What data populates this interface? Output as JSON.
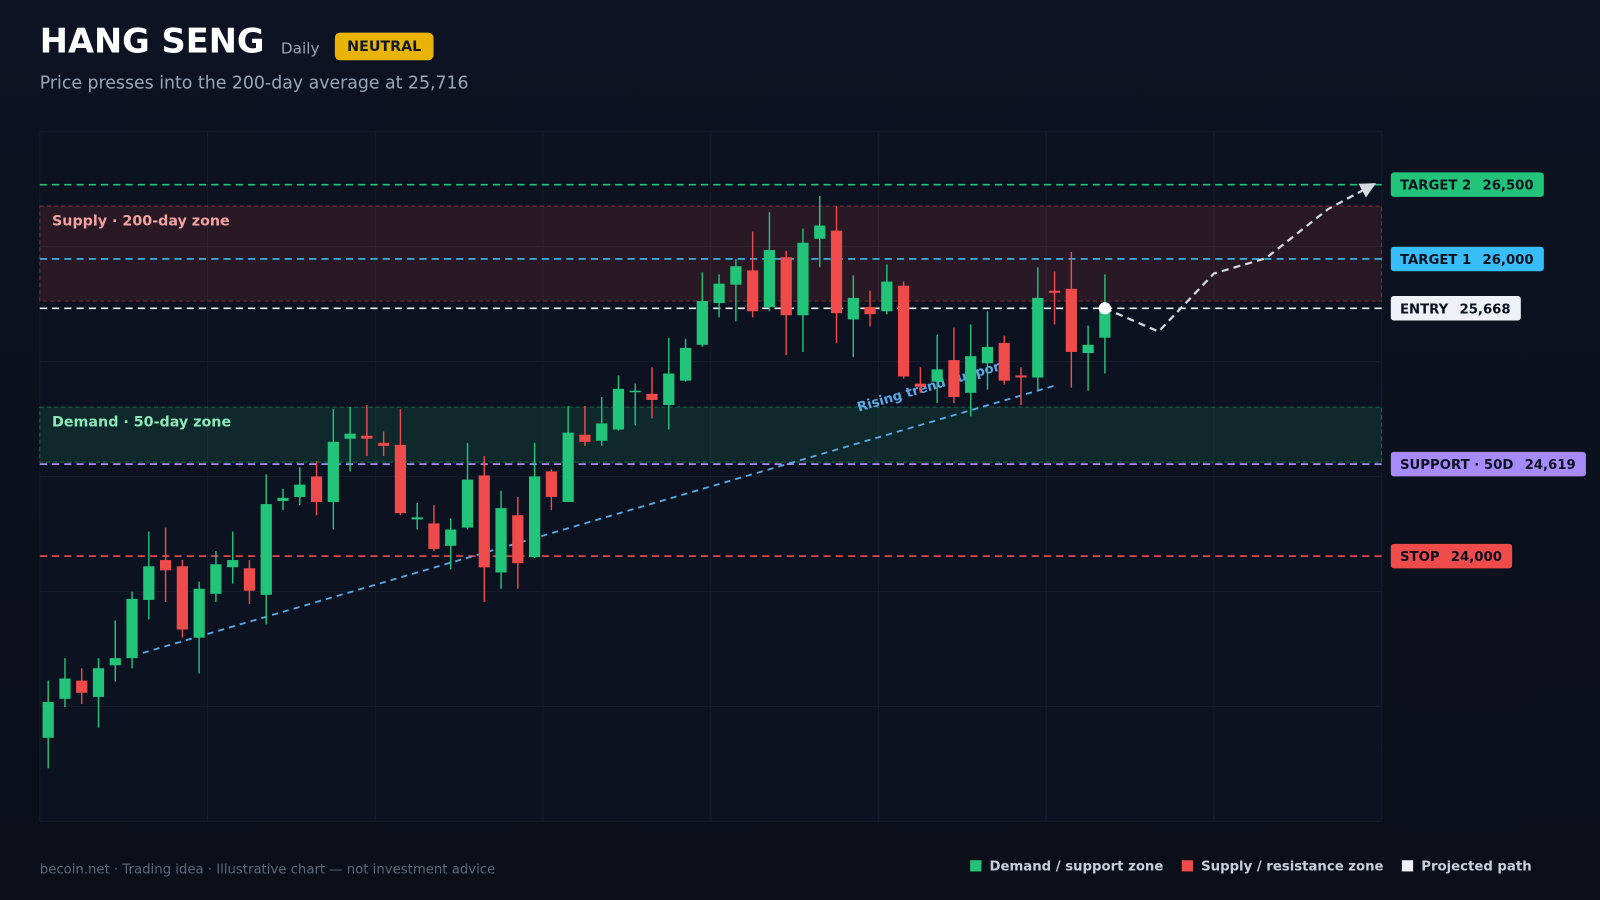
{
  "title": "HANG SENG",
  "timeframe": "Daily",
  "badge": "NEUTRAL",
  "subtitle": "Price presses into the 200-day average at 25,716",
  "footer": "becoin.net  ·  Trading idea  ·  Illustrative chart — not investment advice",
  "chart_data": {
    "type": "candlestick",
    "ylim": [
      22214,
      26857
    ],
    "up_color": "#22c47a",
    "down_color": "#ef4b4b",
    "open": [
      22777,
      23039,
      23162,
      23052,
      23265,
      23313,
      23705,
      23973,
      23931,
      23451,
      23746,
      23925,
      23918,
      23739,
      24371,
      24398,
      24536,
      24364,
      24790,
      24810,
      24762,
      24749,
      24247,
      24220,
      24069,
      24192,
      24543,
      23890,
      24275,
      23993,
      24570,
      24364,
      24817,
      24776,
      24852,
      25106,
      25092,
      25017,
      25181,
      25422,
      25703,
      25827,
      25923,
      25676,
      26012,
      25621,
      26136,
      26191,
      25593,
      25676,
      25648,
      25820,
      25161,
      25174,
      25319,
      25099,
      25298,
      25435,
      25216,
      25202,
      25786,
      25799,
      25367,
      25470
    ],
    "high": [
      23162,
      23313,
      23245,
      23313,
      23567,
      23760,
      24165,
      24192,
      23973,
      23828,
      24034,
      24165,
      23973,
      24550,
      24453,
      24598,
      24639,
      24989,
      25003,
      25017,
      24838,
      24989,
      24357,
      24343,
      24254,
      24762,
      24673,
      24440,
      24398,
      24762,
      24584,
      25010,
      25010,
      25071,
      25216,
      25161,
      25271,
      25470,
      25463,
      25909,
      25896,
      25999,
      26184,
      26315,
      26054,
      26205,
      26424,
      26356,
      25889,
      25786,
      25964,
      25848,
      25271,
      25490,
      25538,
      25559,
      25648,
      25484,
      25271,
      25944,
      25916,
      26047,
      25552,
      25896
    ],
    "low": [
      22572,
      22984,
      23004,
      22846,
      23155,
      23245,
      23574,
      23691,
      23451,
      23210,
      23691,
      23815,
      23677,
      23540,
      24309,
      24343,
      24275,
      24179,
      24570,
      24673,
      24673,
      24275,
      24179,
      24034,
      23911,
      24179,
      23691,
      23780,
      23780,
      23986,
      24309,
      24364,
      24742,
      24742,
      24845,
      24879,
      24927,
      24852,
      25174,
      25408,
      25607,
      25580,
      25607,
      25648,
      25353,
      25374,
      25944,
      25435,
      25339,
      25545,
      25628,
      25195,
      25099,
      25030,
      25030,
      24941,
      25120,
      25154,
      25017,
      25120,
      25559,
      25133,
      25113,
      25229
    ],
    "close": [
      23018,
      23176,
      23080,
      23245,
      23313,
      23712,
      23931,
      23904,
      23506,
      23780,
      23945,
      23973,
      23767,
      24350,
      24392,
      24481,
      24364,
      24769,
      24824,
      24790,
      24742,
      24289,
      24261,
      24048,
      24179,
      24515,
      23924,
      24323,
      23952,
      24536,
      24398,
      24831,
      24769,
      24893,
      25126,
      25113,
      25051,
      25229,
      25401,
      25717,
      25834,
      25951,
      25648,
      26060,
      25621,
      26109,
      26225,
      25635,
      25738,
      25628,
      25848,
      25209,
      25140,
      25257,
      25071,
      25346,
      25408,
      25181,
      25202,
      25738,
      25772,
      25374,
      25422,
      25668
    ],
    "zones": [
      {
        "label": "Supply · 200-day zone",
        "range": [
          25716,
          26356
        ],
        "color": "#ef4b4b",
        "text_color": "#f4a3a3"
      },
      {
        "label": "Demand · 50-day zone",
        "range": [
          24632,
          25003
        ],
        "color": "#22c47a",
        "text_color": "#8de8b8"
      }
    ],
    "levels": [
      {
        "name": "TARGET 2",
        "value": 26500,
        "value_label": "26,500",
        "color": "#22c47a"
      },
      {
        "name": "TARGET 1",
        "value": 26000,
        "value_label": "26,000",
        "color": "#38bdf8"
      },
      {
        "name": "ENTRY",
        "value": 25668,
        "value_label": "25,668",
        "color": "#eef1f5"
      },
      {
        "name": "SUPPORT · 50D",
        "value": 24619,
        "value_label": "24,619",
        "color": "#a78bfa"
      },
      {
        "name": "STOP",
        "value": 24000,
        "value_label": "24,000",
        "color": "#ef4b4b"
      }
    ],
    "trendline": {
      "label": "Rising trend support",
      "x": [
        5,
        60
      ],
      "values": [
        23327,
        25147
      ],
      "color": "#5aa9e6"
    },
    "projection": {
      "x": [
        63,
        66.2,
        69.5,
        72.6,
        76.3,
        79
      ],
      "values": [
        25668,
        25511,
        25902,
        26005,
        26335,
        26500
      ],
      "color": "#d5d9e0"
    },
    "legend": [
      {
        "name": "Demand / support zone",
        "color": "#22c47a"
      },
      {
        "name": "Supply / resistance zone",
        "color": "#ef4b4b"
      },
      {
        "name": "Projected path",
        "color": "#eef1f5"
      }
    ]
  }
}
